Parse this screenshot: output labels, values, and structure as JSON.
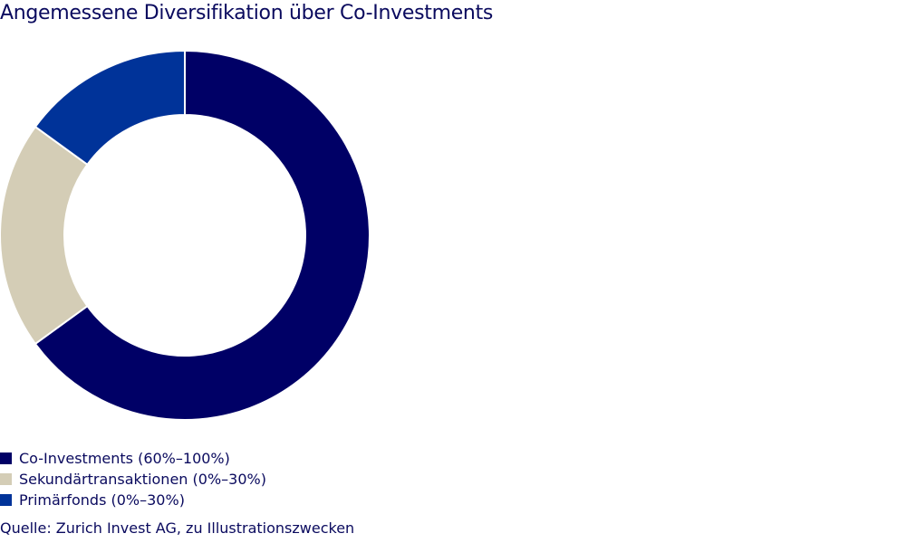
{
  "title": "Angemessene Diversifikation über Co-Investments",
  "legend": [
    {
      "label": "Co-Investments (60%–100%)",
      "color": "#000066"
    },
    {
      "label": "Sekundärtransaktionen (0%–30%)",
      "color": "#d4cdb6"
    },
    {
      "label": "Primärfonds (0%–30%)",
      "color": "#003399"
    }
  ],
  "source": "Quelle: Zurich Invest AG, zu Illustrationszwecken",
  "chart_data": {
    "type": "pie",
    "subtype": "donut",
    "title": "Angemessene Diversifikation über Co-Investments",
    "categories": [
      "Co-Investments",
      "Sekundärtransaktionen",
      "Primärfonds"
    ],
    "values": [
      65,
      20,
      15
    ],
    "ranges": [
      "60%–100%",
      "0%–30%",
      "0%–30%"
    ],
    "colors": [
      "#000066",
      "#d4cdb6",
      "#003399"
    ],
    "start_angle": "12 o'clock, clockwise",
    "legend_position": "bottom-left",
    "source": "Quelle: Zurich Invest AG, zu Illustrationszwecken"
  }
}
